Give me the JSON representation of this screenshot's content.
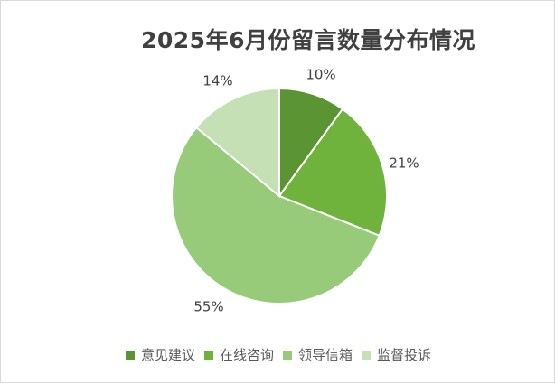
{
  "title": "2025年6月份留言数量分布情况",
  "chart_data": {
    "type": "pie",
    "title": "2025年6月份留言数量分布情况",
    "categories": [
      "意见建议",
      "在线咨询",
      "领导信箱",
      "监督投诉"
    ],
    "values": [
      10,
      21,
      55,
      14
    ],
    "labels": [
      "10%",
      "21%",
      "55%",
      "14%"
    ],
    "colors": [
      "#5b9432",
      "#6fb23c",
      "#97cb7a",
      "#c5e0b4"
    ],
    "legend_position": "bottom",
    "start_angle": "12 o'clock, clockwise"
  }
}
